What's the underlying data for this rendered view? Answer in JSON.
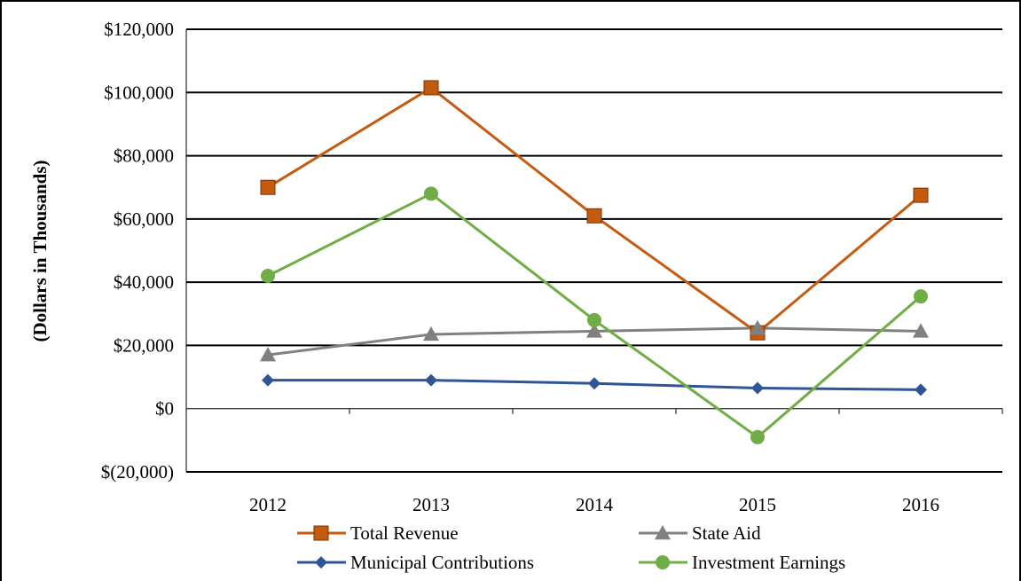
{
  "chart_data": {
    "type": "line",
    "title": "",
    "xlabel": "",
    "ylabel": "(Dollars in Thousands)",
    "categories": [
      "2012",
      "2013",
      "2014",
      "2015",
      "2016"
    ],
    "ylim": [
      -20000,
      120000
    ],
    "yticks": [
      -20000,
      0,
      20000,
      40000,
      60000,
      80000,
      100000,
      120000
    ],
    "ytick_labels": [
      "$(20,000)",
      "$0",
      "$20,000",
      "$40,000",
      "$60,000",
      "$80,000",
      "$100,000",
      "$120,000"
    ],
    "grid": true,
    "legend_position": "bottom",
    "series": [
      {
        "name": "Total Revenue",
        "color": "#C55A11",
        "marker": "square",
        "values": [
          70000,
          101500,
          61000,
          24000,
          67500
        ]
      },
      {
        "name": "State Aid",
        "color": "#808080",
        "marker": "triangle",
        "values": [
          17000,
          23500,
          24500,
          25500,
          24500
        ]
      },
      {
        "name": "Municipal Contributions",
        "color": "#2F5597",
        "marker": "diamond",
        "values": [
          9000,
          9000,
          8000,
          6500,
          6000
        ]
      },
      {
        "name": "Investment Earnings",
        "color": "#70AD47",
        "marker": "circle",
        "values": [
          42000,
          68000,
          28000,
          -9000,
          35500
        ]
      }
    ]
  }
}
